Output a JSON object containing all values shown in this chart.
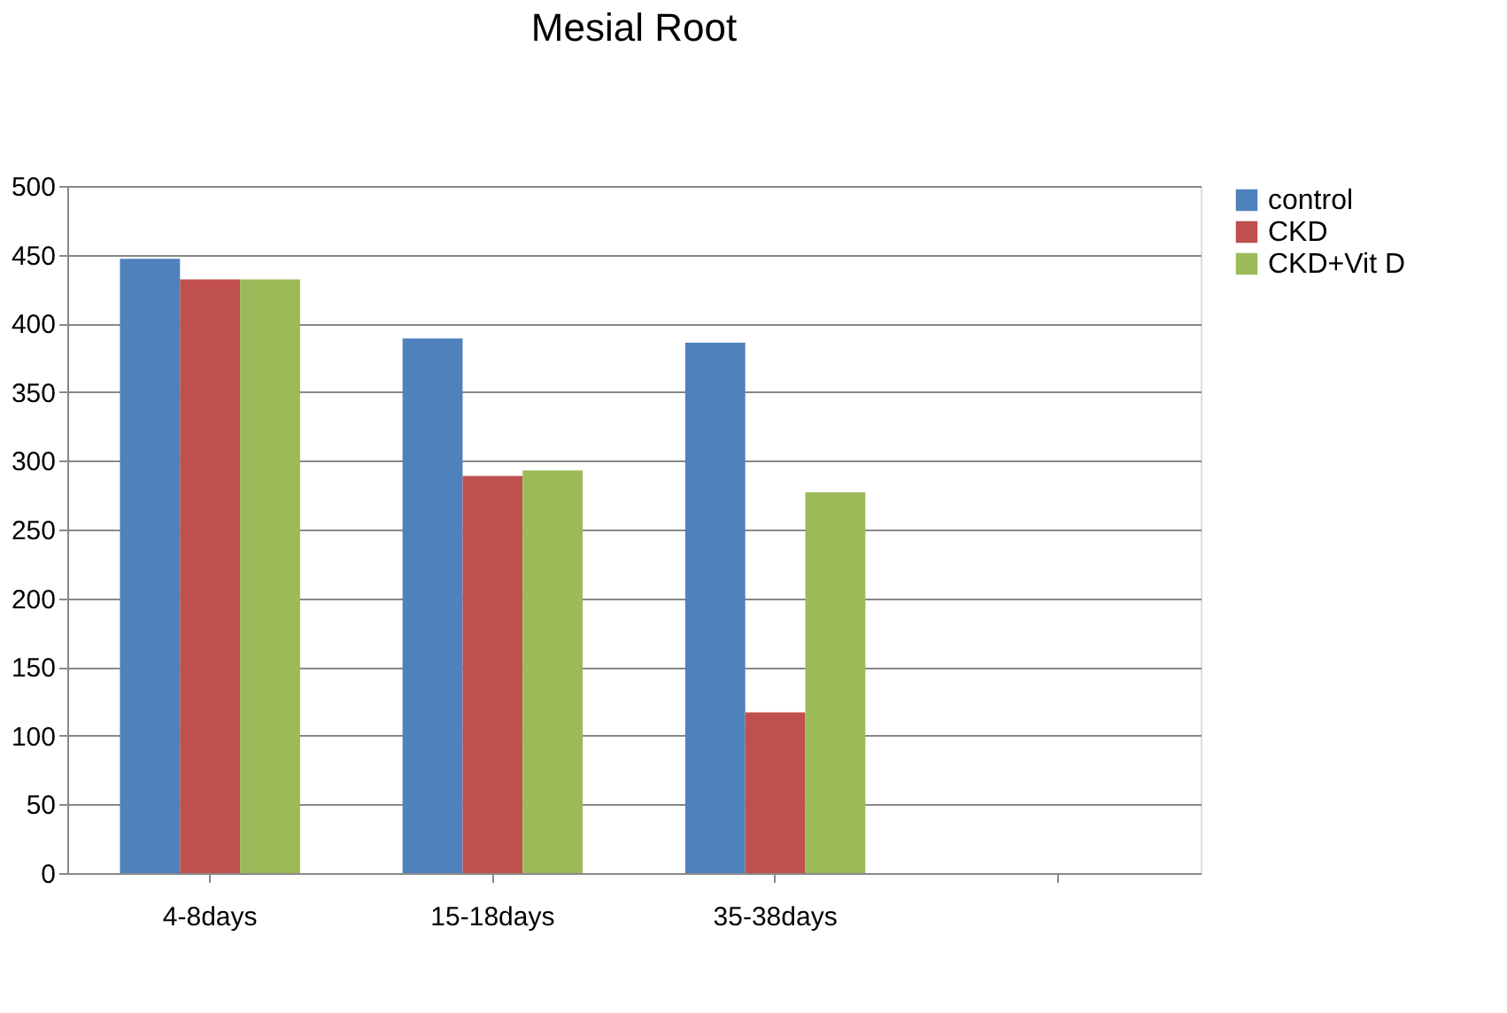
{
  "chart_data": {
    "type": "bar",
    "title": "Mesial Root",
    "categories": [
      "4-8days",
      "15-18days",
      "35-38days",
      null
    ],
    "series": [
      {
        "name": "control",
        "color": "#4f81bd",
        "values": [
          447,
          389,
          386,
          null
        ]
      },
      {
        "name": "CKD",
        "color": "#c0504d",
        "values": [
          432,
          289,
          117,
          null
        ]
      },
      {
        "name": "CKD+Vit D",
        "color": "#9bbb59",
        "values": [
          432,
          293,
          277,
          null
        ]
      }
    ],
    "ylim": [
      0,
      500
    ],
    "yticks": [
      0,
      50,
      100,
      150,
      200,
      250,
      300,
      350,
      400,
      450,
      500
    ],
    "grid": "y",
    "legend": "right"
  }
}
